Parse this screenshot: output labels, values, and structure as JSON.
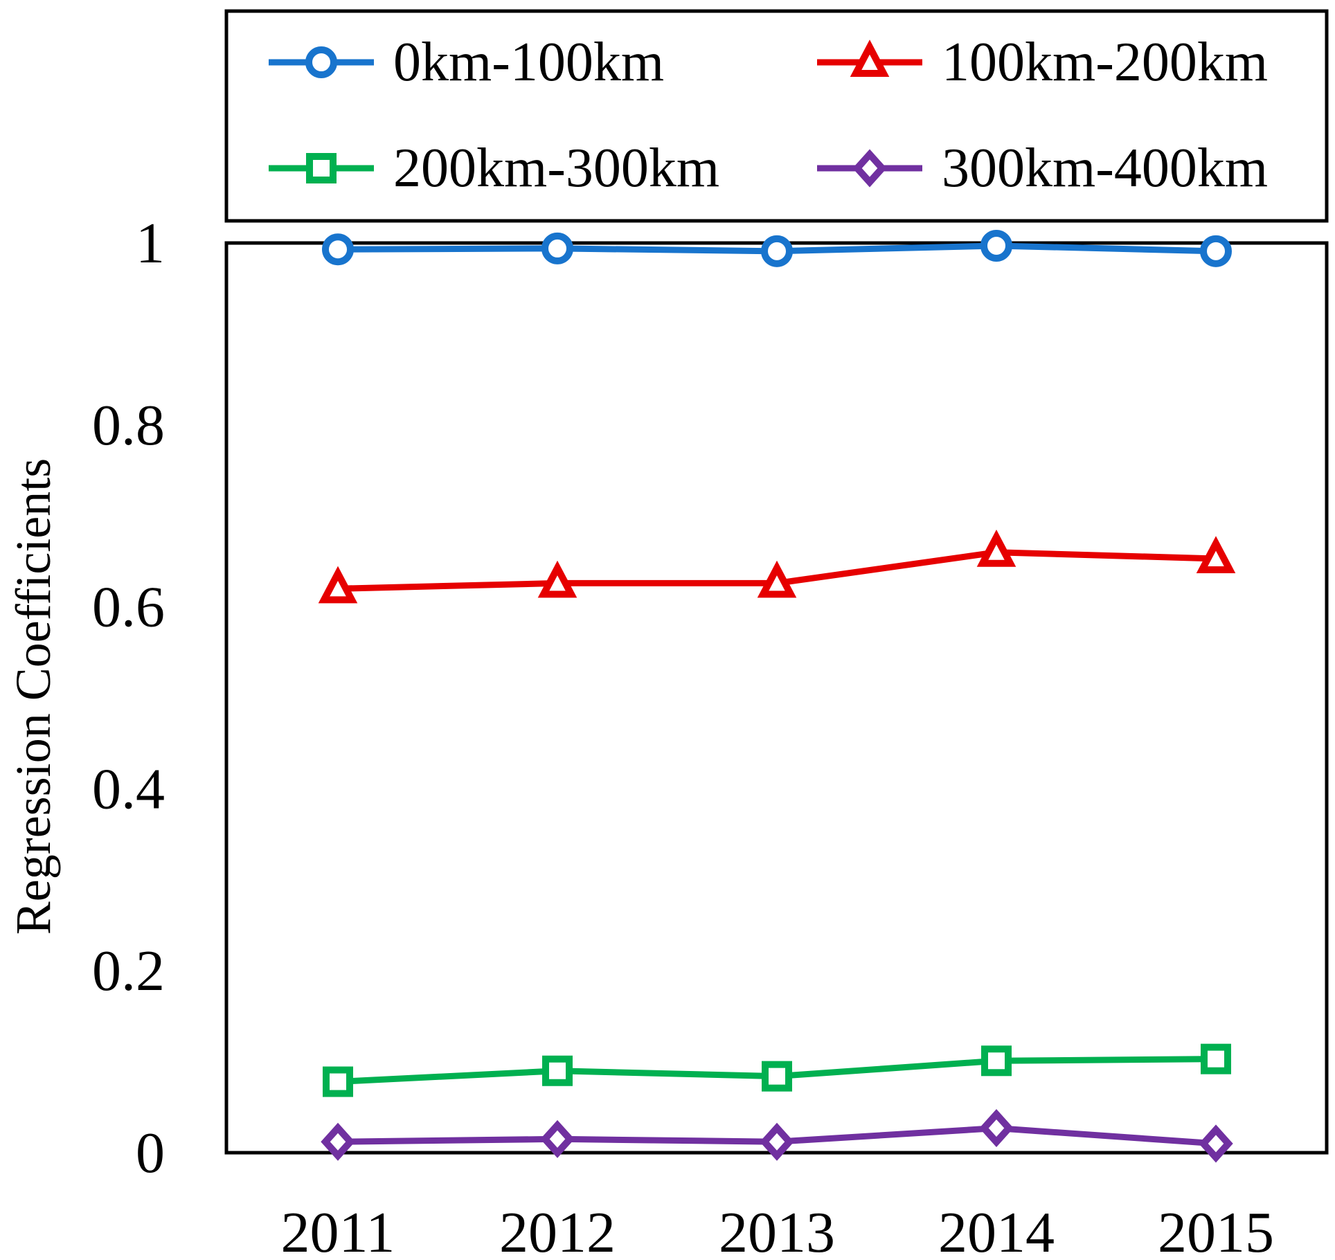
{
  "chart_data": {
    "type": "line",
    "title": "",
    "xlabel": "",
    "ylabel": "Regression  Coefficients",
    "categories": [
      "2011",
      "2012",
      "2013",
      "2014",
      "2015"
    ],
    "ylim": [
      0,
      1
    ],
    "yticks": [
      0,
      0.2,
      0.4,
      0.6,
      0.8,
      1
    ],
    "ytick_labels": [
      "0",
      "0.2",
      "0.4",
      "0.6",
      "0.8",
      "1"
    ],
    "grid": false,
    "legend_position": "top, outside plot",
    "series": [
      {
        "name": "0km-100km",
        "color": "#1874CD",
        "marker": "circle",
        "values": [
          0.993,
          0.994,
          0.991,
          0.997,
          0.991
        ]
      },
      {
        "name": "100km-200km",
        "color": "#E60000",
        "marker": "triangle",
        "values": [
          0.62,
          0.626,
          0.626,
          0.66,
          0.653
        ]
      },
      {
        "name": "200km-300km",
        "color": "#00B050",
        "marker": "square",
        "values": [
          0.078,
          0.09,
          0.084,
          0.101,
          0.103
        ]
      },
      {
        "name": "300km-400km",
        "color": "#7030A0",
        "marker": "diamond",
        "values": [
          0.012,
          0.015,
          0.012,
          0.027,
          0.01
        ]
      }
    ]
  }
}
